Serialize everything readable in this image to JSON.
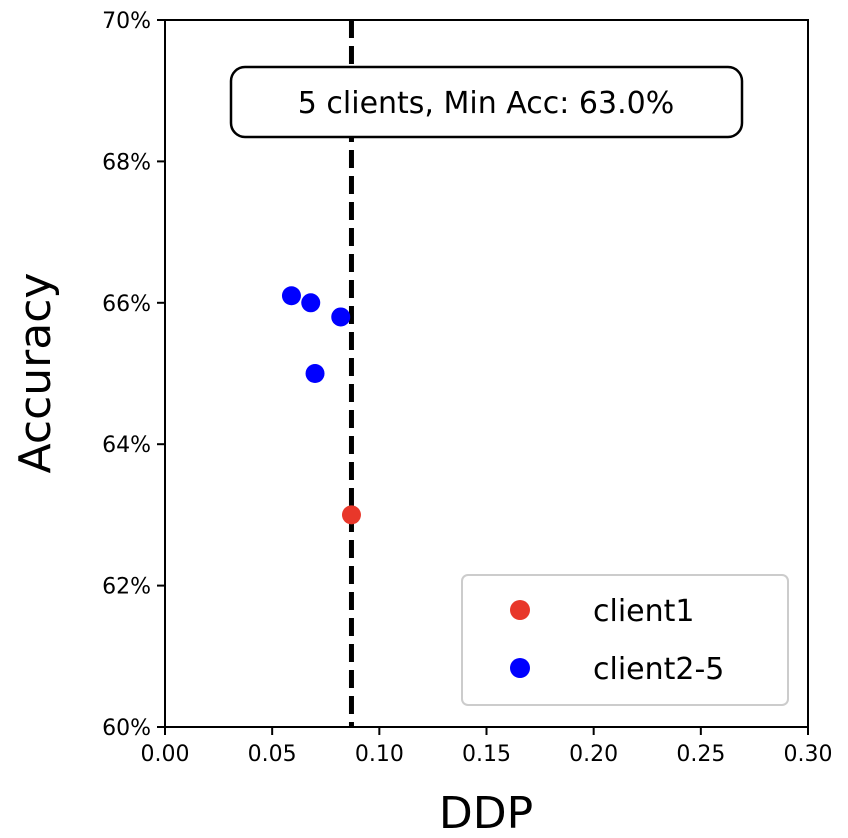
{
  "chart_data": {
    "type": "scatter",
    "xlabel": "DDP",
    "ylabel": "Accuracy",
    "xlim": [
      0.0,
      0.3
    ],
    "ylim": [
      60,
      70
    ],
    "x_ticks": [
      0.0,
      0.05,
      0.1,
      0.15,
      0.2,
      0.25,
      0.3
    ],
    "x_tick_labels": [
      "0.00",
      "0.05",
      "0.10",
      "0.15",
      "0.20",
      "0.25",
      "0.30"
    ],
    "y_ticks": [
      60,
      62,
      64,
      66,
      68,
      70
    ],
    "y_tick_labels": [
      "60%",
      "62%",
      "64%",
      "66%",
      "68%",
      "70%"
    ],
    "series": [
      {
        "name": "client1",
        "color": "#e8372a",
        "points": [
          {
            "x": 0.087,
            "y": 63.0
          }
        ]
      },
      {
        "name": "client2-5",
        "color": "#0000ff",
        "points": [
          {
            "x": 0.059,
            "y": 66.1
          },
          {
            "x": 0.068,
            "y": 66.0
          },
          {
            "x": 0.082,
            "y": 65.8
          },
          {
            "x": 0.07,
            "y": 65.0
          }
        ]
      }
    ],
    "threshold_line": {
      "x": 0.087,
      "style": "dashed",
      "color": "#000000"
    },
    "annotation": "5 clients, Min Acc: 63.0%",
    "legend_position": "lower-right",
    "grid": false
  }
}
